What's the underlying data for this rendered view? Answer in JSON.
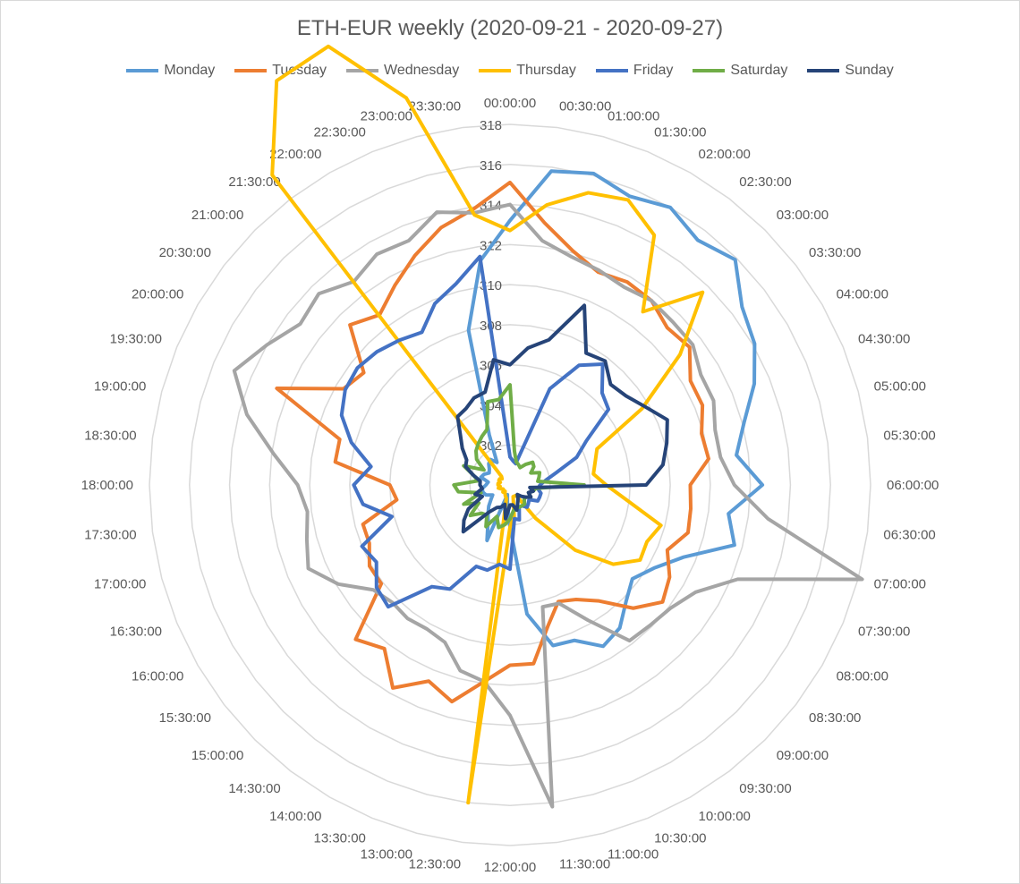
{
  "chart_data": {
    "type": "radar",
    "title": "ETH-EUR weekly (2020-09-21 - 2020-09-27)",
    "rlim": [
      300,
      318
    ],
    "ticks": [
      302,
      304,
      306,
      308,
      310,
      312,
      314,
      316,
      318
    ],
    "grid": true,
    "legend_position": "top",
    "categories": [
      "00:00:00",
      "00:30:00",
      "01:00:00",
      "01:30:00",
      "02:00:00",
      "02:30:00",
      "03:00:00",
      "03:30:00",
      "04:00:00",
      "04:30:00",
      "05:00:00",
      "05:30:00",
      "06:00:00",
      "06:30:00",
      "07:00:00",
      "07:30:00",
      "08:00:00",
      "08:30:00",
      "09:00:00",
      "09:30:00",
      "10:00:00",
      "10:30:00",
      "11:00:00",
      "11:30:00",
      "12:00:00",
      "12:30:00",
      "13:00:00",
      "13:30:00",
      "14:00:00",
      "14:30:00",
      "15:00:00",
      "15:30:00",
      "16:00:00",
      "16:30:00",
      "17:00:00",
      "17:30:00",
      "18:00:00",
      "18:30:00",
      "19:00:00",
      "19:30:00",
      "20:00:00",
      "20:30:00",
      "21:00:00",
      "21:30:00",
      "22:00:00",
      "22:30:00",
      "23:00:00",
      "23:30:00"
    ],
    "series": [
      {
        "name": "Monday",
        "color": "#5b9bd5",
        "values": [
          313.2,
          315.8,
          316.1,
          315.6,
          316.0,
          315.4,
          315.9,
          314.6,
          314.1,
          313.2,
          312.1,
          311.4,
          312.6,
          311.0,
          311.6,
          309.4,
          308.3,
          307.7,
          308.2,
          309.0,
          309.3,
          308.4,
          308.3,
          306.5,
          302.1,
          301.0,
          300.5,
          303.0,
          302.2,
          301.8,
          301.5,
          301.2,
          301.0,
          301.3,
          301.4,
          301.4,
          301.2,
          301.1,
          301.5,
          301.4,
          301.2,
          301.3,
          301.5,
          301.6,
          301.3,
          302.7,
          308.0,
          311.3
        ]
      },
      {
        "name": "Tuesday",
        "color": "#ed7d31",
        "values": [
          315.1,
          313.2,
          312.1,
          311.5,
          311.7,
          311.6,
          311.1,
          311.3,
          310.4,
          310.4,
          309.9,
          310.0,
          309.0,
          309.1,
          309.2,
          308.5,
          309.2,
          309.6,
          308.7,
          307.3,
          306.6,
          306.3,
          307.3,
          309.0,
          309.0,
          309.9,
          311.2,
          310.6,
          311.7,
          310.3,
          310.9,
          308.1,
          308.1,
          307.6,
          307.6,
          305.7,
          306.0,
          308.8,
          308.8,
          312.6,
          309.6,
          309.2,
          311.3,
          310.7,
          311.5,
          312.4,
          313.3,
          313.9
        ]
      },
      {
        "name": "Wednesday",
        "color": "#a5a5a5",
        "values": [
          314.0,
          312.3,
          311.8,
          311.6,
          311.4,
          311.6,
          311.5,
          311.5,
          311.0,
          311.0,
          310.6,
          310.6,
          311.2,
          313.0,
          318.2,
          312.3,
          310.7,
          310.1,
          309.9,
          309.8,
          307.8,
          306.4,
          306.3,
          316.2,
          311.5,
          309.9,
          309.6,
          308.5,
          308.3,
          308.4,
          308.3,
          308.6,
          309.9,
          310.9,
          310.5,
          310.2,
          310.6,
          311.9,
          313.6,
          314.9,
          314.0,
          313.2,
          313.5,
          312.8,
          313.3,
          313.2,
          314.1,
          313.7
        ]
      },
      {
        "name": "Thursday",
        "color": "#ffc000",
        "values": [
          312.7,
          314.1,
          315.1,
          315.4,
          314.4,
          310.9,
          313.6,
          310.7,
          307.6,
          304.7,
          304.4,
          304.2,
          304.8,
          305.9,
          307.8,
          307.4,
          307.5,
          306.5,
          304.6,
          302.1,
          300.6,
          300.6,
          300.6,
          301.6,
          302.1,
          316.0,
          300.7,
          300.6,
          300.5,
          300.4,
          300.5,
          300.4,
          300.4,
          300.5,
          300.6,
          300.5,
          300.6,
          300.6,
          300.5,
          300.6,
          300.6,
          300.5,
          300.6,
          319.5,
          323.3,
          323.7,
          320.0,
          313.6
        ]
      },
      {
        "name": "Friday",
        "color": "#4472c4",
        "values": [
          301.4,
          301.2,
          301.1,
          305.2,
          306.9,
          307.6,
          306.5,
          306.2,
          304.4,
          303.6,
          302.4,
          301.8,
          301.5,
          301.4,
          301.6,
          301.6,
          301.6,
          301.2,
          301.3,
          301.4,
          301.2,
          301.2,
          301.8,
          301.7,
          304.2,
          304.0,
          304.4,
          304.4,
          306.0,
          306.4,
          308.6,
          308.4,
          307.7,
          308.0,
          306.1,
          307.4,
          307.8,
          307.0,
          308.2,
          309.1,
          309.5,
          309.6,
          309.4,
          309.1,
          308.8,
          309.8,
          310.4,
          311.5
        ]
      },
      {
        "name": "Saturday",
        "color": "#70ad47",
        "values": [
          305.0,
          301.7,
          301.2,
          301.1,
          301.0,
          301.3,
          301.6,
          301.5,
          301.2,
          301.6,
          301.5,
          301.4,
          303.7,
          301.3,
          301.2,
          301.0,
          301.2,
          301.0,
          301.0,
          301.2,
          301.2,
          301.2,
          301.2,
          301.3,
          301.7,
          302.0,
          302.2,
          301.7,
          302.4,
          301.9,
          302.0,
          302.5,
          301.8,
          302.5,
          301.5,
          302.6,
          302.8,
          301.6,
          301.9,
          302.5,
          301.5,
          302.1,
          302.4,
          302.6,
          302.8,
          303.0,
          304.3,
          304.3
        ]
      },
      {
        "name": "Sunday",
        "color": "#264478",
        "values": [
          306.0,
          306.9,
          307.5,
          309.7,
          307.6,
          307.8,
          307.1,
          307.3,
          307.8,
          308.5,
          308.1,
          307.7,
          306.8,
          301.0,
          301.2,
          301.0,
          301.2,
          301.0,
          300.8,
          300.6,
          300.8,
          301.0,
          301.3,
          301.0,
          301.0,
          301.7,
          301.0,
          301.2,
          301.3,
          301.7,
          303.3,
          302.9,
          302.4,
          301.5,
          301.8,
          301.4,
          301.5,
          301.5,
          301.9,
          302.4,
          302.5,
          303.0,
          303.5,
          304.3,
          304.4,
          304.7,
          304.8,
          306.3
        ]
      }
    ]
  }
}
